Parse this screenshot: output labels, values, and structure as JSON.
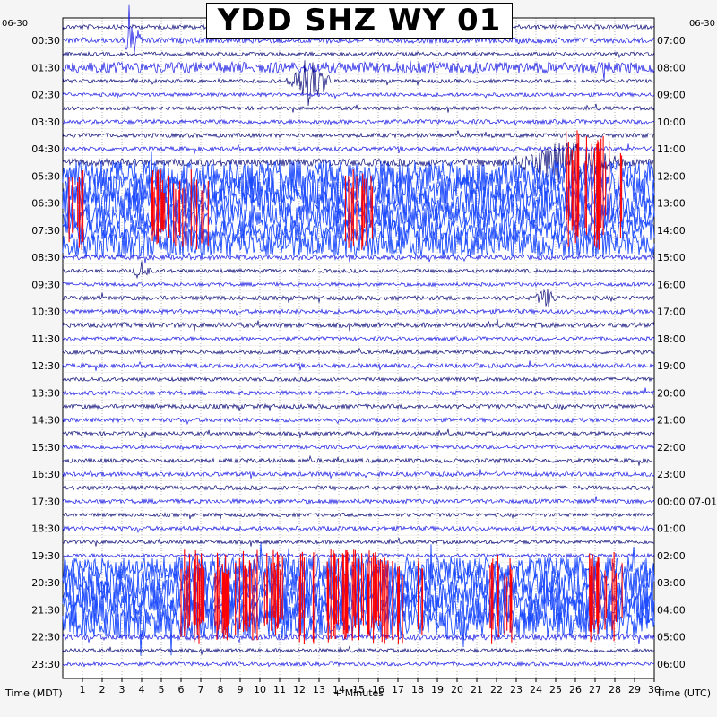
{
  "title": "YDD SHZ WY 01",
  "date_left": "06-30",
  "date_right": "06-30",
  "xlabel": "+ Minutes",
  "left_axis_label": "Time (MDT)",
  "right_axis_label": "Time (UTC)",
  "colors": {
    "trace_dark": "#0c0c7a",
    "trace_blue": "#1a1ae6",
    "trace_bright": "#1f4cff",
    "clipped": "#ff0000",
    "grid": "#000000",
    "background": "#f5f5f5",
    "plot_bg": "#ffffff"
  },
  "chart_data": {
    "type": "helicorder",
    "x_ticks": [
      "1",
      "2",
      "3",
      "4",
      "5",
      "6",
      "7",
      "8",
      "9",
      "10",
      "11",
      "12",
      "13",
      "14",
      "15",
      "16",
      "17",
      "18",
      "19",
      "20",
      "21",
      "22",
      "23",
      "24",
      "25",
      "26",
      "27",
      "28",
      "29",
      "30"
    ],
    "xlim": [
      0,
      30
    ],
    "rows_per_hour": 2,
    "row_minutes": 30,
    "left_ticks": [
      "00:30",
      "01:30",
      "02:30",
      "03:30",
      "04:30",
      "05:30",
      "06:30",
      "07:30",
      "08:30",
      "09:30",
      "10:30",
      "11:30",
      "12:30",
      "13:30",
      "14:30",
      "15:30",
      "16:30",
      "17:30",
      "18:30",
      "19:30",
      "20:30",
      "21:30",
      "22:30",
      "23:30"
    ],
    "right_ticks": [
      "07:00",
      "08:00",
      "09:00",
      "10:00",
      "11:00",
      "12:00",
      "13:00",
      "14:00",
      "15:00",
      "16:00",
      "17:00",
      "18:00",
      "19:00",
      "20:00",
      "21:00",
      "22:00",
      "23:00",
      "00:00 07-01",
      "01:00",
      "02:00",
      "03:00",
      "04:00",
      "05:00",
      "06:00"
    ],
    "trace_color_cycle": [
      "dark",
      "blue"
    ],
    "amplitude_by_row": [
      0.35,
      0.45,
      0.3,
      0.9,
      0.3,
      0.3,
      0.3,
      0.35,
      0.35,
      0.35,
      0.6,
      2.5,
      2.5,
      2.5,
      2.0,
      1.8,
      2.2,
      0.4,
      0.3,
      0.3,
      0.35,
      0.35,
      0.4,
      0.3,
      0.3,
      0.35,
      0.3,
      0.35,
      0.35,
      0.35,
      0.3,
      0.3,
      0.35,
      0.35,
      0.35,
      0.35,
      0.3,
      0.35,
      0.3,
      0.3,
      2.0,
      2.6,
      2.6,
      2.6,
      2.4,
      0.5,
      0.3,
      0.3
    ],
    "events": [
      {
        "row": 1,
        "minute": 3.5,
        "amplitude": 2.5,
        "width": 0.6
      },
      {
        "row": 4,
        "minute": 12.5,
        "amplitude": 4,
        "width": 1.2
      },
      {
        "row": 10,
        "minute": 25.5,
        "amplitude": 3,
        "width": 3
      },
      {
        "row": 18,
        "minute": 4,
        "amplitude": 1.5,
        "width": 0.5
      },
      {
        "row": 20,
        "minute": 24.5,
        "amplitude": 1.5,
        "width": 0.6
      }
    ],
    "clipped_ranges": [
      {
        "row_start": 8,
        "row_end": 16,
        "minute_start": 25.5,
        "minute_end": 28.5
      },
      {
        "row_start": 11,
        "row_end": 16,
        "minute_start": 0.3,
        "minute_end": 1.2
      },
      {
        "row_start": 11,
        "row_end": 16,
        "minute_start": 4.5,
        "minute_end": 7.5
      },
      {
        "row_start": 11,
        "row_end": 16,
        "minute_start": 14.3,
        "minute_end": 15.8
      },
      {
        "row_start": 39,
        "row_end": 45,
        "minute_start": 6.0,
        "minute_end": 18.3
      },
      {
        "row_start": 39,
        "row_end": 45,
        "minute_start": 21.5,
        "minute_end": 22.8
      },
      {
        "row_start": 39,
        "row_end": 45,
        "minute_start": 26.5,
        "minute_end": 28.5
      }
    ]
  }
}
